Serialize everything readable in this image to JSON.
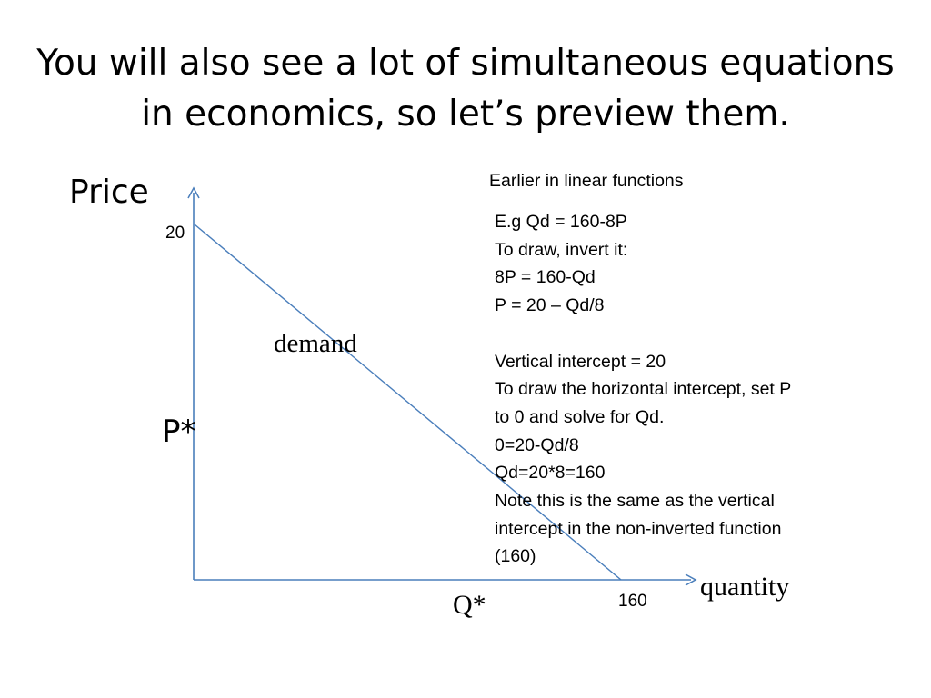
{
  "slide": {
    "title_lines": [
      "You will also see a lot of simultaneous equations",
      "in economics, so let’s preview them."
    ]
  },
  "graph": {
    "y_axis_label": "Price",
    "x_axis_label": "quantity",
    "y_intercept_label": "20",
    "x_intercept_label": "160",
    "p_star_label": "P*",
    "q_star_label": "Q*",
    "curve_label": "demand",
    "axis_color": "#4a7ebb",
    "curve_color": "#4a7ebb"
  },
  "notes": {
    "heading": "Earlier in linear functions",
    "lines": [
      "E.g Qd = 160-8P",
      "To draw, invert it:",
      "8P = 160-Qd",
      "P = 20 – Qd/8",
      "",
      "Vertical intercept = 20",
      "To draw the horizontal intercept, set P",
      "to 0 and solve for Qd.",
      "0=20-Qd/8",
      "Qd=20*8=160",
      "Note this is the same as the vertical",
      "intercept in the non-inverted function",
      "(160)"
    ]
  }
}
